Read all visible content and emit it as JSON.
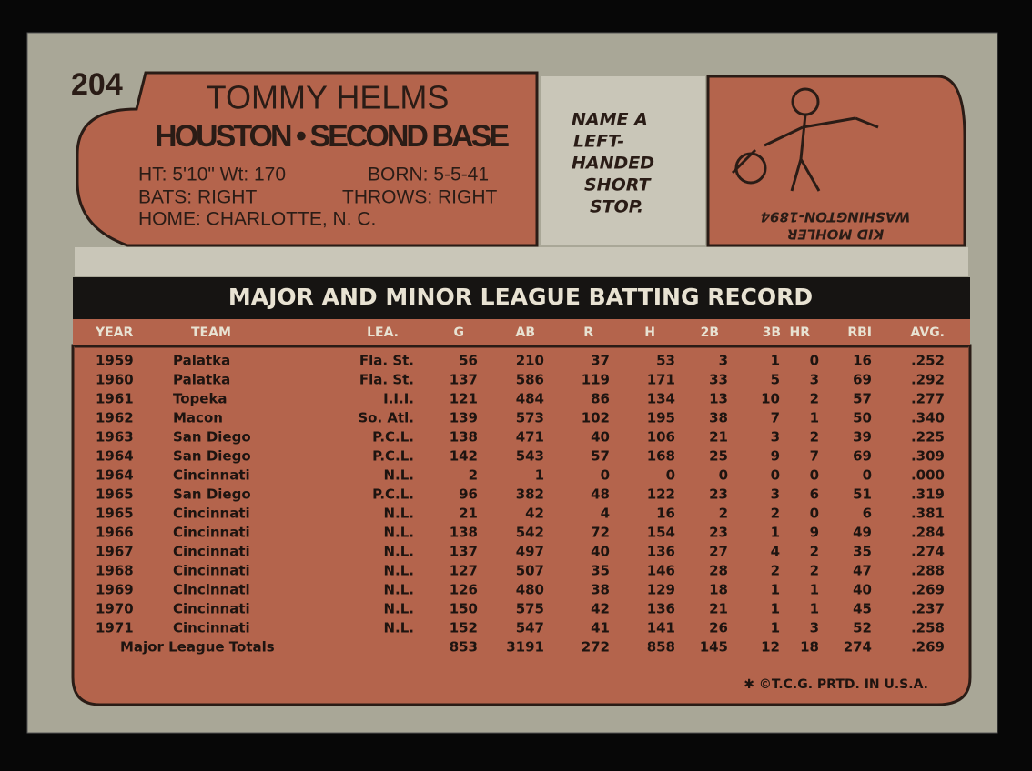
{
  "card": {
    "number": "204",
    "name": "TOMMY HELMS",
    "team_position": "HOUSTON • SECOND BASE",
    "bio": [
      "HT: 5'10\" Wt: 170",
      "BORN: 5-5-41",
      "BATS: RIGHT",
      "THROWS: RIGHT",
      "HOME: CHARLOTTE, N. C."
    ],
    "cartoon_question": [
      "NAME A",
      "LEFT-",
      "HANDED",
      "SHORT",
      "STOP."
    ],
    "cartoon_answer": [
      "KID MOHLER",
      "WASHINGTON-1894"
    ],
    "footer": "✱ ©T.C.G. PRTD. IN U.S.A."
  },
  "table": {
    "title": "MAJOR AND MINOR LEAGUE BATTING RECORD",
    "columns": [
      "YEAR",
      "TEAM",
      "LEA.",
      "G",
      "AB",
      "R",
      "H",
      "2B",
      "3B",
      "HR",
      "RBI",
      "AVG."
    ],
    "rows": [
      [
        "1959",
        "Palatka",
        "Fla. St.",
        "56",
        "210",
        "37",
        "53",
        "3",
        "1",
        "0",
        "16",
        ".252"
      ],
      [
        "1960",
        "Palatka",
        "Fla. St.",
        "137",
        "586",
        "119",
        "171",
        "33",
        "5",
        "3",
        "69",
        ".292"
      ],
      [
        "1961",
        "Topeka",
        "I.I.I.",
        "121",
        "484",
        "86",
        "134",
        "13",
        "10",
        "2",
        "57",
        ".277"
      ],
      [
        "1962",
        "Macon",
        "So. Atl.",
        "139",
        "573",
        "102",
        "195",
        "38",
        "7",
        "1",
        "50",
        ".340"
      ],
      [
        "1963",
        "San Diego",
        "P.C.L.",
        "138",
        "471",
        "40",
        "106",
        "21",
        "3",
        "2",
        "39",
        ".225"
      ],
      [
        "1964",
        "San Diego",
        "P.C.L.",
        "142",
        "543",
        "57",
        "168",
        "25",
        "9",
        "7",
        "69",
        ".309"
      ],
      [
        "1964",
        "Cincinnati",
        "N.L.",
        "2",
        "1",
        "0",
        "0",
        "0",
        "0",
        "0",
        "0",
        ".000"
      ],
      [
        "1965",
        "San Diego",
        "P.C.L.",
        "96",
        "382",
        "48",
        "122",
        "23",
        "3",
        "6",
        "51",
        ".319"
      ],
      [
        "1965",
        "Cincinnati",
        "N.L.",
        "21",
        "42",
        "4",
        "16",
        "2",
        "2",
        "0",
        "6",
        ".381"
      ],
      [
        "1966",
        "Cincinnati",
        "N.L.",
        "138",
        "542",
        "72",
        "154",
        "23",
        "1",
        "9",
        "49",
        ".284"
      ],
      [
        "1967",
        "Cincinnati",
        "N.L.",
        "137",
        "497",
        "40",
        "136",
        "27",
        "4",
        "2",
        "35",
        ".274"
      ],
      [
        "1968",
        "Cincinnati",
        "N.L.",
        "127",
        "507",
        "35",
        "146",
        "28",
        "2",
        "2",
        "47",
        ".288"
      ],
      [
        "1969",
        "Cincinnati",
        "N.L.",
        "126",
        "480",
        "38",
        "129",
        "18",
        "1",
        "1",
        "40",
        ".269"
      ],
      [
        "1970",
        "Cincinnati",
        "N.L.",
        "150",
        "575",
        "42",
        "136",
        "21",
        "1",
        "1",
        "45",
        ".237"
      ],
      [
        "1971",
        "Cincinnati",
        "N.L.",
        "152",
        "547",
        "41",
        "141",
        "26",
        "1",
        "3",
        "52",
        ".258"
      ]
    ],
    "totals": {
      "label": "Major League Totals",
      "values": [
        "853",
        "3191",
        "272",
        "858",
        "145",
        "12",
        "18",
        "274",
        ".269"
      ]
    }
  }
}
